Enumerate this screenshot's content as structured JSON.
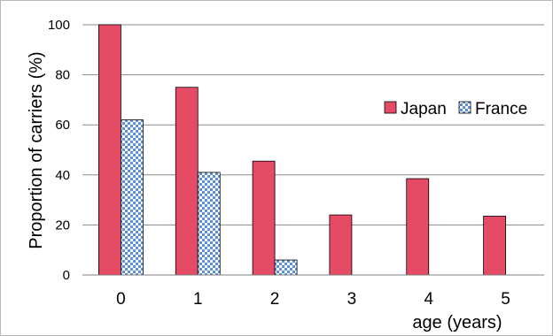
{
  "chart_data": {
    "type": "bar",
    "categories": [
      "0",
      "1",
      "2",
      "3",
      "4",
      "5"
    ],
    "series": [
      {
        "name": "Japan",
        "values": [
          100,
          75,
          45.5,
          24,
          38.5,
          23.5
        ],
        "color": "#e64b66",
        "pattern": "solid"
      },
      {
        "name": "France",
        "values": [
          62,
          41,
          6,
          0,
          0,
          0
        ],
        "color": "#5b8fd6",
        "pattern": "checkerboard"
      }
    ],
    "xlabel": "age (years)",
    "ylabel": "Proportion of carriers (%)",
    "ylim": [
      0,
      100
    ],
    "yticks": [
      0,
      20,
      40,
      60,
      80,
      100
    ],
    "grid": true,
    "legend": "right"
  }
}
